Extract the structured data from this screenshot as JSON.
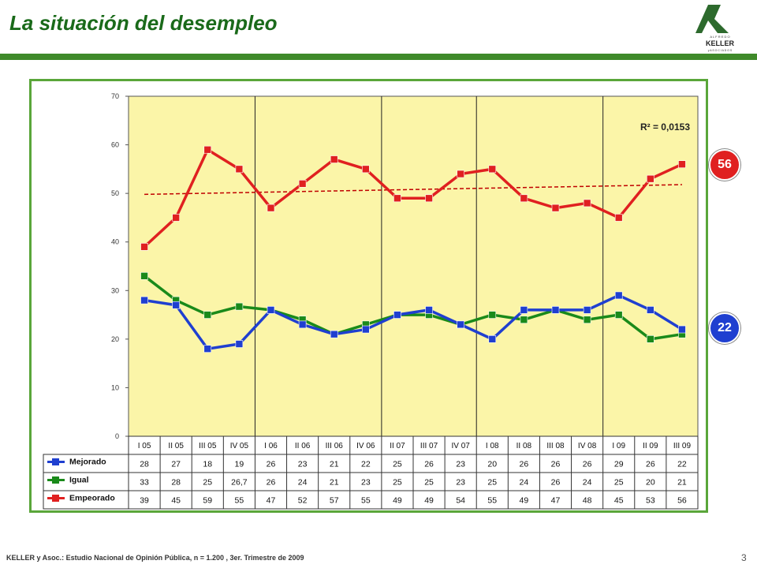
{
  "page": {
    "title": "La situación del desempleo",
    "footer": "KELLER y Asoc.: Estudio Nacional de Opinión Pública, n = 1.200 , 3er. Trimestre de 2009",
    "page_number": "3"
  },
  "logo": {
    "top": "A L F R E D O",
    "name": "KELLER",
    "bottom": "y  A S O C I A D O S",
    "color": "#2d6a2d"
  },
  "badges": {
    "empeorado": {
      "label": "56",
      "color": "#e02020"
    },
    "mejorado": {
      "label": "22",
      "color": "#1f3fd0"
    }
  },
  "chart_data": {
    "type": "line",
    "categories": [
      "I 05",
      "II 05",
      "III 05",
      "IV 05",
      "I 06",
      "II 06",
      "III 06",
      "IV 06",
      "II 07",
      "III 07",
      "IV 07",
      "I 08",
      "II 08",
      "III 08",
      "IV 08",
      "I 09",
      "II 09",
      "III 09"
    ],
    "ylim": [
      0,
      70
    ],
    "yticks": [
      0,
      10,
      20,
      30,
      40,
      50,
      60,
      70
    ],
    "grid": false,
    "year_separators_after": [
      "IV 05",
      "IV 06",
      "IV 07",
      "IV 08"
    ],
    "plot_background": "#fbf5a8",
    "trendline": {
      "series": "Empeorado",
      "start": 49.8,
      "end": 51.8,
      "label": "R² = 0,0153"
    },
    "series": [
      {
        "name": "Mejorado",
        "color": "#1f3fd0",
        "values": [
          28,
          27,
          18,
          19,
          26,
          23,
          21,
          22,
          25,
          26,
          23,
          20,
          26,
          26,
          26,
          29,
          26,
          22
        ],
        "table": [
          "28",
          "27",
          "18",
          "19",
          "26",
          "23",
          "21",
          "22",
          "25",
          "26",
          "23",
          "20",
          "26",
          "26",
          "26",
          "29",
          "26",
          "22"
        ]
      },
      {
        "name": "Igual",
        "color": "#1a8a1a",
        "values": [
          33,
          28,
          25,
          26.7,
          26,
          24,
          21,
          23,
          25,
          25,
          23,
          25,
          24,
          26,
          24,
          25,
          20,
          21
        ],
        "table": [
          "33",
          "28",
          "25",
          "26,7",
          "26",
          "24",
          "21",
          "23",
          "25",
          "25",
          "23",
          "25",
          "24",
          "26",
          "24",
          "25",
          "20",
          "21"
        ]
      },
      {
        "name": "Empeorado",
        "color": "#e02020",
        "values": [
          39,
          45,
          59,
          55,
          47,
          52,
          57,
          55,
          49,
          49,
          54,
          55,
          49,
          47,
          48,
          45,
          53,
          56
        ],
        "table": [
          "39",
          "45",
          "59",
          "55",
          "47",
          "52",
          "57",
          "55",
          "49",
          "49",
          "54",
          "55",
          "49",
          "47",
          "48",
          "45",
          "53",
          "56"
        ]
      }
    ]
  }
}
